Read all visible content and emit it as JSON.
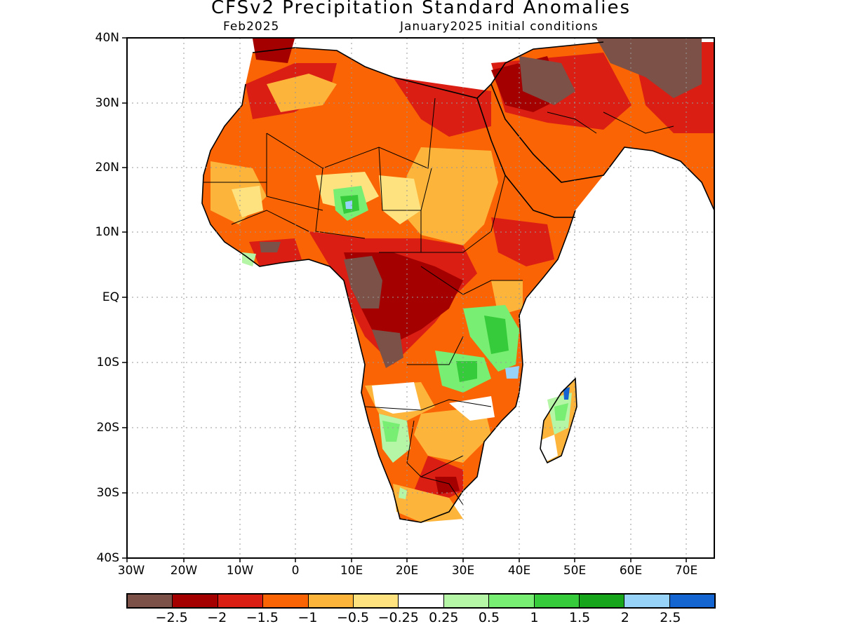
{
  "title": "CFSv2 Precipitation Standard Anomalies",
  "subtitle_left": "Feb2025",
  "subtitle_right": "January2025 initial conditions",
  "lat_labels": [
    "40N",
    "30N",
    "20N",
    "10N",
    "EQ",
    "10S",
    "20S",
    "30S",
    "40S"
  ],
  "lon_labels": [
    "30W",
    "20W",
    "10W",
    "0",
    "10E",
    "20E",
    "30E",
    "40E",
    "50E",
    "60E",
    "70E"
  ],
  "colorbar": {
    "colors": [
      "#7b5148",
      "#a40000",
      "#da1e13",
      "#fa6404",
      "#fdb43b",
      "#fee27f",
      "#ffffff",
      "#b5f5a6",
      "#78ee72",
      "#35cb3a",
      "#17a51b",
      "#97d2f9",
      "#1464d2"
    ],
    "labels": [
      "−2.5",
      "−2",
      "−1.5",
      "−1",
      "−0.5",
      "−0.25",
      "0.25",
      "0.5",
      "1",
      "1.5",
      "2",
      "2.5"
    ]
  },
  "legend_colors": {
    "brown": "#7b5148",
    "dark_red": "#a40000",
    "red": "#da1e13",
    "orange": "#fa6404",
    "light_orange": "#fdb43b",
    "yellow": "#fee27f",
    "white": "#ffffff",
    "light_green": "#b5f5a6",
    "green": "#78ee72",
    "mid_green": "#35cb3a",
    "dark_green": "#17a51b",
    "light_blue": "#97d2f9",
    "blue": "#1464d2"
  }
}
